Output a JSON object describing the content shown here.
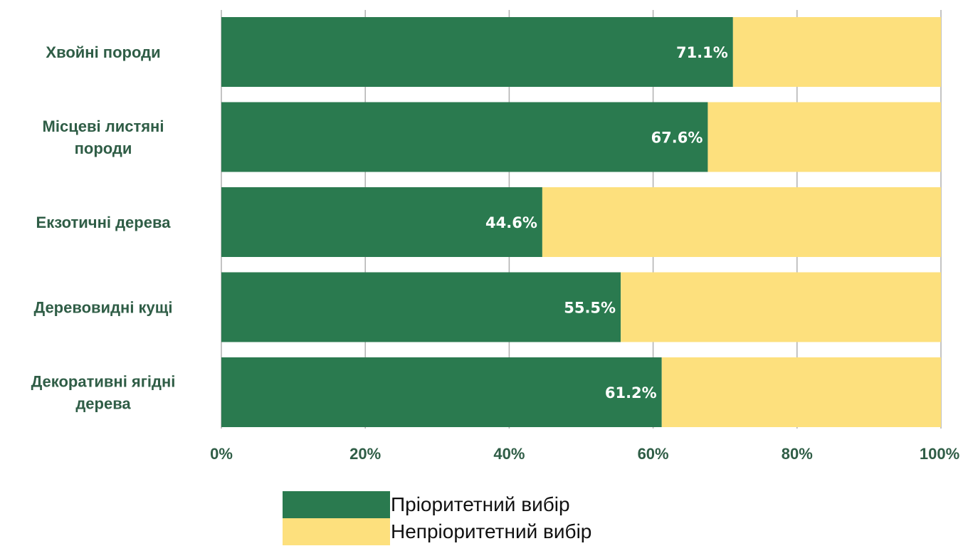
{
  "chart_data": {
    "type": "bar",
    "orientation": "horizontal",
    "stacked": true,
    "categories": [
      [
        "Хвойні породи"
      ],
      [
        "Місцеві листяні",
        "породи"
      ],
      [
        "Екзотичні дерева"
      ],
      [
        "Деревовидні кущі"
      ],
      [
        "Декоративні ягідні",
        "дерева"
      ]
    ],
    "series": [
      {
        "name": "Пріоритетний вибір",
        "values": [
          71.1,
          67.6,
          44.6,
          55.5,
          61.2
        ],
        "labels": [
          "71.1%",
          "67.6%",
          "44.6%",
          "55.5%",
          "61.2%"
        ],
        "color": "#2a7a4f"
      },
      {
        "name": "Непріоритетний вибір",
        "values": [
          28.9,
          32.4,
          55.4,
          44.5,
          38.8
        ],
        "color": "#fde07d"
      }
    ],
    "xlim": [
      0,
      100
    ],
    "xticks": [
      "0%",
      "20%",
      "40%",
      "60%",
      "80%",
      "100%"
    ],
    "grid": "vertical",
    "legend_position": "bottom",
    "label_color": "#2f5d46",
    "data_label_color": "#ffffff",
    "grid_color": "#b0b0b0"
  }
}
